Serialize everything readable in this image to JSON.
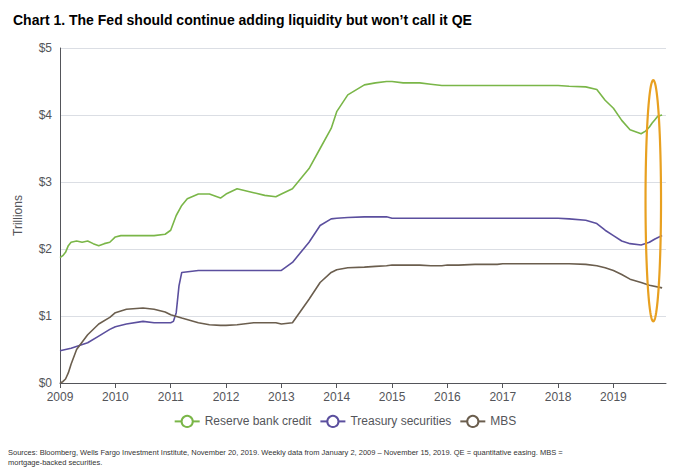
{
  "chart_data": {
    "type": "line",
    "title": "Chart 1. The Fed should continue adding liquidity but won’t call it QE",
    "ylabel": "Trillions",
    "annotations": [
      "Sources: Bloomberg, Wells Fargo Investment Institute, November 20, 2019. Weekly data from January 2, 2009 – November 15, 2019. QE = quantitative easing. MBS =\nmortgage-backed securities."
    ],
    "grid": true,
    "legend": "bottom",
    "xlim": [
      2009.0,
      2019.95
    ],
    "xticks": [
      2009,
      2010,
      2011,
      2012,
      2013,
      2014,
      2015,
      2016,
      2017,
      2018,
      2019
    ],
    "ylim": [
      0,
      5.0
    ],
    "yticks": [
      {
        "value": 0,
        "label": "$0"
      },
      {
        "value": 1,
        "label": "$1"
      },
      {
        "value": 2,
        "label": "$2"
      },
      {
        "value": 3,
        "label": "$3"
      },
      {
        "value": 4,
        "label": "$4"
      },
      {
        "value": 5,
        "label": "$5"
      }
    ],
    "series": [
      {
        "name": "Reserve bank credit",
        "color": "#7ab648",
        "x": [
          2009.0,
          2009.05,
          2009.1,
          2009.15,
          2009.2,
          2009.3,
          2009.4,
          2009.5,
          2009.6,
          2009.7,
          2009.8,
          2009.9,
          2010.0,
          2010.1,
          2010.2,
          2010.3,
          2010.5,
          2010.7,
          2010.9,
          2011.0,
          2011.1,
          2011.2,
          2011.3,
          2011.5,
          2011.7,
          2011.9,
          2012.0,
          2012.2,
          2012.5,
          2012.7,
          2012.9,
          2013.0,
          2013.2,
          2013.5,
          2013.7,
          2013.9,
          2014.0,
          2014.2,
          2014.5,
          2014.7,
          2014.9,
          2015.0,
          2015.2,
          2015.5,
          2015.7,
          2015.9,
          2016.0,
          2016.2,
          2016.5,
          2016.7,
          2016.9,
          2017.0,
          2017.2,
          2017.5,
          2017.7,
          2017.9,
          2018.0,
          2018.2,
          2018.5,
          2018.7,
          2018.85,
          2019.0,
          2019.15,
          2019.3,
          2019.5,
          2019.58,
          2019.65,
          2019.7,
          2019.75,
          2019.8,
          2019.88
        ],
        "values": [
          1.87,
          1.9,
          1.95,
          2.05,
          2.1,
          2.12,
          2.1,
          2.12,
          2.08,
          2.05,
          2.08,
          2.1,
          2.18,
          2.2,
          2.2,
          2.2,
          2.2,
          2.2,
          2.22,
          2.28,
          2.5,
          2.65,
          2.75,
          2.82,
          2.82,
          2.76,
          2.82,
          2.9,
          2.84,
          2.8,
          2.78,
          2.82,
          2.9,
          3.2,
          3.5,
          3.8,
          4.05,
          4.3,
          4.45,
          4.48,
          4.5,
          4.5,
          4.48,
          4.48,
          4.46,
          4.44,
          4.44,
          4.44,
          4.44,
          4.44,
          4.44,
          4.44,
          4.44,
          4.44,
          4.44,
          4.44,
          4.44,
          4.43,
          4.42,
          4.38,
          4.22,
          4.1,
          3.92,
          3.78,
          3.72,
          3.76,
          3.82,
          3.88,
          3.93,
          3.98,
          4.0
        ]
      },
      {
        "name": "Treasury securities",
        "color": "#5b4f9e",
        "x": [
          2009.0,
          2009.2,
          2009.5,
          2009.7,
          2009.9,
          2010.0,
          2010.2,
          2010.5,
          2010.7,
          2010.9,
          2011.0,
          2011.05,
          2011.1,
          2011.15,
          2011.2,
          2011.5,
          2011.7,
          2011.9,
          2012.0,
          2012.2,
          2012.5,
          2012.7,
          2012.9,
          2013.0,
          2013.2,
          2013.5,
          2013.7,
          2013.9,
          2014.0,
          2014.2,
          2014.5,
          2014.7,
          2014.9,
          2015.0,
          2015.2,
          2015.5,
          2015.7,
          2015.9,
          2016.0,
          2016.2,
          2016.5,
          2016.7,
          2016.9,
          2017.0,
          2017.2,
          2017.5,
          2017.7,
          2017.9,
          2018.0,
          2018.2,
          2018.5,
          2018.7,
          2018.85,
          2019.0,
          2019.15,
          2019.3,
          2019.5,
          2019.65,
          2019.75,
          2019.88
        ],
        "values": [
          0.48,
          0.52,
          0.6,
          0.7,
          0.8,
          0.84,
          0.88,
          0.92,
          0.9,
          0.9,
          0.9,
          0.92,
          1.05,
          1.45,
          1.65,
          1.68,
          1.68,
          1.68,
          1.68,
          1.68,
          1.68,
          1.68,
          1.68,
          1.68,
          1.8,
          2.1,
          2.35,
          2.45,
          2.46,
          2.47,
          2.48,
          2.48,
          2.48,
          2.46,
          2.46,
          2.46,
          2.46,
          2.46,
          2.46,
          2.46,
          2.46,
          2.46,
          2.46,
          2.46,
          2.46,
          2.46,
          2.46,
          2.46,
          2.46,
          2.45,
          2.43,
          2.38,
          2.28,
          2.2,
          2.12,
          2.08,
          2.06,
          2.1,
          2.15,
          2.2
        ]
      },
      {
        "name": "MBS",
        "color": "#6b5e4e",
        "x": [
          2009.0,
          2009.05,
          2009.1,
          2009.15,
          2009.2,
          2009.3,
          2009.5,
          2009.7,
          2009.9,
          2010.0,
          2010.2,
          2010.5,
          2010.7,
          2010.9,
          2011.0,
          2011.2,
          2011.5,
          2011.7,
          2011.9,
          2012.0,
          2012.2,
          2012.5,
          2012.7,
          2012.9,
          2013.0,
          2013.2,
          2013.5,
          2013.7,
          2013.9,
          2014.0,
          2014.2,
          2014.5,
          2014.7,
          2014.9,
          2015.0,
          2015.2,
          2015.5,
          2015.7,
          2015.9,
          2016.0,
          2016.2,
          2016.5,
          2016.7,
          2016.9,
          2017.0,
          2017.2,
          2017.5,
          2017.7,
          2017.9,
          2018.0,
          2018.2,
          2018.5,
          2018.7,
          2018.85,
          2019.0,
          2019.15,
          2019.3,
          2019.5,
          2019.65,
          2019.88
        ],
        "values": [
          0.0,
          0.02,
          0.06,
          0.15,
          0.28,
          0.5,
          0.72,
          0.88,
          0.98,
          1.05,
          1.1,
          1.12,
          1.1,
          1.06,
          1.02,
          0.97,
          0.9,
          0.87,
          0.86,
          0.86,
          0.87,
          0.9,
          0.9,
          0.9,
          0.88,
          0.9,
          1.25,
          1.5,
          1.65,
          1.69,
          1.72,
          1.73,
          1.74,
          1.75,
          1.76,
          1.76,
          1.76,
          1.75,
          1.75,
          1.76,
          1.76,
          1.77,
          1.77,
          1.77,
          1.78,
          1.78,
          1.78,
          1.78,
          1.78,
          1.78,
          1.78,
          1.77,
          1.75,
          1.72,
          1.68,
          1.62,
          1.55,
          1.5,
          1.46,
          1.42
        ]
      }
    ],
    "ellipse": {
      "x": 2019.72,
      "y": 2.72,
      "width": 0.28,
      "height": 3.6,
      "color": "#e8a020"
    }
  }
}
